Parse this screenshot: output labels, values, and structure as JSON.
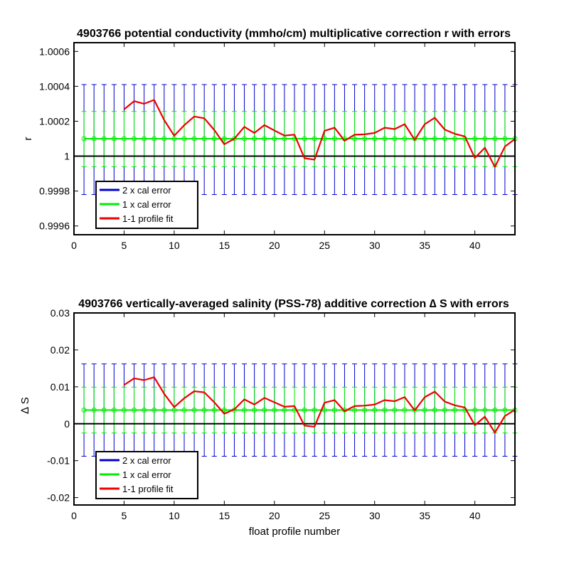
{
  "chart_data": [
    {
      "type": "line",
      "title": "4903766 potential conductivity (mmho/cm) multiplicative correction r with errors",
      "xlabel": "",
      "ylabel": "r",
      "xlim": [
        0,
        44
      ],
      "ylim": [
        0.99955,
        1.00065
      ],
      "xticks": [
        0,
        5,
        10,
        15,
        20,
        25,
        30,
        35,
        40
      ],
      "xtick_labels": [
        "0",
        "5",
        "10",
        "15",
        "20",
        "25",
        "30",
        "35",
        "40"
      ],
      "yticks": [
        0.9996,
        0.9998,
        1.0,
        1.0002,
        1.0004,
        1.0006
      ],
      "ytick_labels": [
        "0.9996",
        "0.9998",
        "1",
        "1.0002",
        "1.0004",
        "1.0006"
      ],
      "legend_position": "bottom-left",
      "reference_line": 1.0,
      "x": [
        1,
        2,
        3,
        4,
        5,
        6,
        7,
        8,
        9,
        10,
        11,
        12,
        13,
        14,
        15,
        16,
        17,
        18,
        19,
        20,
        21,
        22,
        23,
        24,
        25,
        26,
        27,
        28,
        29,
        30,
        31,
        32,
        33,
        34,
        35,
        36,
        37,
        38,
        39,
        40,
        41,
        42,
        43,
        44
      ],
      "series": [
        {
          "name": "2 x cal error",
          "color": "#0000cd",
          "center": 1.0001,
          "lower": 0.99978,
          "upper": 1.00041
        },
        {
          "name": "1 x cal error",
          "color": "#00ee00",
          "center": 1.0001,
          "lower": 0.99994,
          "upper": 1.000256
        },
        {
          "name": "1-1 profile fit",
          "color": "#ee0000",
          "x": [
            5,
            6,
            7,
            8,
            9,
            10,
            11,
            12,
            13,
            14,
            15,
            16,
            17,
            18,
            19,
            20,
            21,
            22,
            23,
            24,
            25,
            26,
            27,
            28,
            29,
            30,
            31,
            32,
            33,
            34,
            35,
            36,
            37,
            38,
            39,
            40,
            41,
            42,
            43,
            44
          ],
          "values": [
            1.000268,
            1.000315,
            1.0003,
            1.000322,
            1.000207,
            1.000117,
            1.000177,
            1.000227,
            1.000217,
            1.00015,
            1.000068,
            1.0001,
            1.000168,
            1.000133,
            1.000178,
            1.000147,
            1.000118,
            1.000123,
            0.999988,
            0.99998,
            1.000145,
            1.000163,
            1.000088,
            1.000123,
            1.000125,
            1.000133,
            1.000163,
            1.000155,
            1.000183,
            1.000093,
            1.000183,
            1.00022,
            1.000152,
            1.000128,
            1.000113,
            0.99999,
            1.000048,
            0.999938,
            1.000055,
            1.000098
          ]
        }
      ]
    },
    {
      "type": "line",
      "title": "4903766 vertically-averaged salinity (PSS-78) additive correction ∆ S with errors",
      "xlabel": "float profile number",
      "ylabel": "∆ S",
      "xlim": [
        0,
        44
      ],
      "ylim": [
        -0.022,
        0.03
      ],
      "xticks": [
        0,
        5,
        10,
        15,
        20,
        25,
        30,
        35,
        40
      ],
      "xtick_labels": [
        "0",
        "5",
        "10",
        "15",
        "20",
        "25",
        "30",
        "35",
        "40"
      ],
      "yticks": [
        -0.02,
        -0.01,
        0,
        0.01,
        0.02,
        0.03
      ],
      "ytick_labels": [
        "-0.02",
        "-0.01",
        "0",
        "0.01",
        "0.02",
        "0.03"
      ],
      "legend_position": "bottom-left",
      "reference_line": 0,
      "x": [
        1,
        2,
        3,
        4,
        5,
        6,
        7,
        8,
        9,
        10,
        11,
        12,
        13,
        14,
        15,
        16,
        17,
        18,
        19,
        20,
        21,
        22,
        23,
        24,
        25,
        26,
        27,
        28,
        29,
        30,
        31,
        32,
        33,
        34,
        35,
        36,
        37,
        38,
        39,
        40,
        41,
        42,
        43,
        44
      ],
      "series": [
        {
          "name": "2 x cal error",
          "color": "#0000cd",
          "center": 0.0037,
          "lower": -0.0088,
          "upper": 0.0162
        },
        {
          "name": "1 x cal error",
          "color": "#00ee00",
          "center": 0.0037,
          "lower": -0.0025,
          "upper": 0.0099
        },
        {
          "name": "1-1 profile fit",
          "color": "#ee0000",
          "x": [
            5,
            6,
            7,
            8,
            9,
            10,
            11,
            12,
            13,
            14,
            15,
            16,
            17,
            18,
            19,
            20,
            21,
            22,
            23,
            24,
            25,
            26,
            27,
            28,
            29,
            30,
            31,
            32,
            33,
            34,
            35,
            36,
            37,
            38,
            39,
            40,
            41,
            42,
            43,
            44
          ],
          "values": [
            0.0105,
            0.0123,
            0.0118,
            0.0126,
            0.0081,
            0.0045,
            0.0069,
            0.0088,
            0.0085,
            0.0058,
            0.0027,
            0.0039,
            0.0066,
            0.0052,
            0.007,
            0.0058,
            0.0046,
            0.0048,
            -0.0005,
            -0.0008,
            0.0057,
            0.0064,
            0.0034,
            0.0048,
            0.0049,
            0.0052,
            0.0064,
            0.0061,
            0.0072,
            0.0036,
            0.0072,
            0.0087,
            0.006,
            0.005,
            0.0044,
            -0.0004,
            0.0019,
            -0.0024,
            0.0021,
            0.0038
          ]
        }
      ]
    }
  ]
}
